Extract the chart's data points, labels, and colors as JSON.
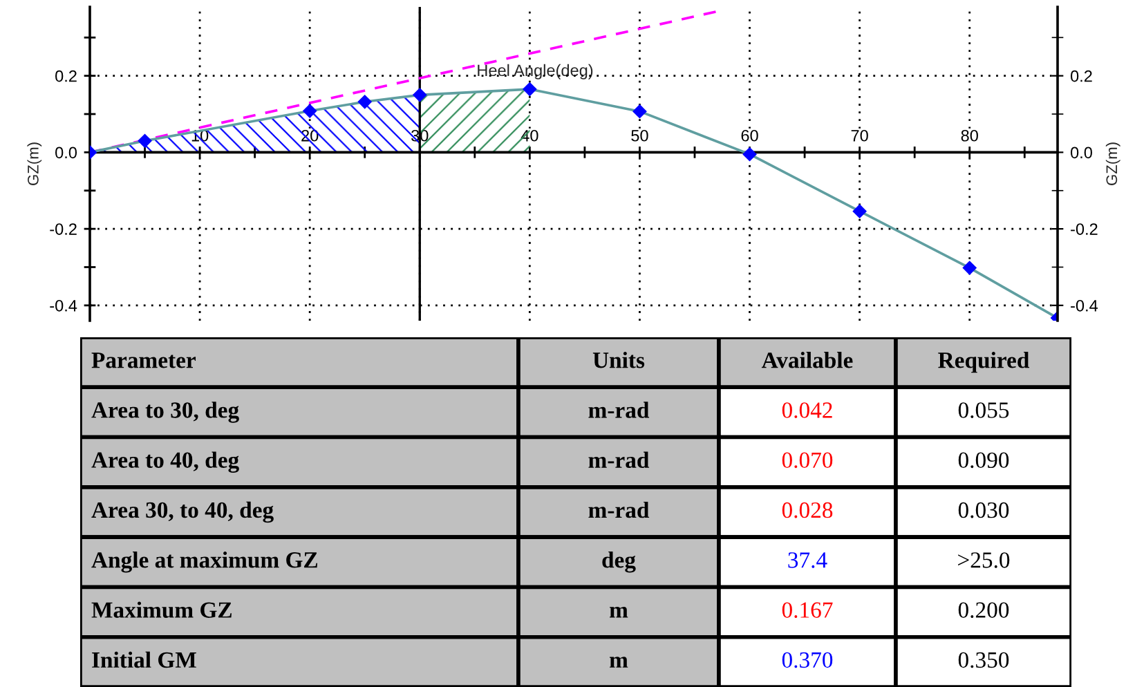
{
  "chart_data": [
    {
      "type": "line",
      "xlabel": "Heel Angle(deg)",
      "ylabel": "GZ(m)",
      "y2label": "GZ(m)",
      "xlim": [
        0,
        88
      ],
      "ylim": [
        -0.44,
        0.38
      ],
      "y2lim": [
        -0.44,
        0.38
      ],
      "xticks": [
        {
          "value": 5,
          "label": null
        },
        10,
        {
          "value": 15,
          "label": null
        },
        20,
        {
          "value": 25,
          "label": null
        },
        30,
        {
          "value": 35,
          "label": null
        },
        40,
        {
          "value": 45,
          "label": null
        },
        50,
        {
          "value": 55,
          "label": null
        },
        60,
        {
          "value": 65,
          "label": null
        },
        70,
        {
          "value": 75,
          "label": null
        },
        80,
        {
          "value": 85,
          "label": null
        }
      ],
      "yticks": [
        {
          "value": -0.4,
          "label": "-0.4"
        },
        {
          "value": -0.3,
          "label": null
        },
        {
          "value": -0.2,
          "label": "-0.2"
        },
        {
          "value": -0.1,
          "label": null
        },
        {
          "value": 0,
          "label": "0.0"
        },
        {
          "value": 0.1,
          "label": null
        },
        {
          "value": 0.2,
          "label": "0.2"
        },
        {
          "value": 0.3,
          "label": null
        }
      ],
      "y2ticks": [
        {
          "value": -0.4,
          "label": "-0.4"
        },
        {
          "value": -0.3,
          "label": null
        },
        {
          "value": -0.2,
          "label": "-0.2"
        },
        {
          "value": -0.1,
          "label": null
        },
        {
          "value": 0,
          "label": "0.0"
        },
        {
          "value": 0.1,
          "label": null
        },
        {
          "value": 0.2,
          "label": "0.2"
        },
        {
          "value": 0.3,
          "label": null
        }
      ],
      "grid": true,
      "legend": false,
      "ref_lines": [
        {
          "axis": "x",
          "value": 30,
          "color": "#000000",
          "line_style": "solid"
        }
      ],
      "series": [
        {
          "type": "area",
          "color": "#0000ff",
          "x": [
            0,
            5,
            20,
            25,
            30
          ],
          "values": [
            0,
            0.03,
            0.108,
            0.132,
            0.15
          ]
        },
        {
          "type": "area",
          "color": "#2e8b57",
          "x": [
            30,
            40
          ],
          "values": [
            0.15,
            0.165
          ]
        },
        {
          "type": "line",
          "color": "#ff00ff",
          "line_style": "dashed",
          "x": [
            0,
            57.3
          ],
          "values": [
            0,
            0.37
          ]
        },
        {
          "type": "line",
          "color": "#5f9ea0",
          "line_style": "solid",
          "x": [
            0,
            5,
            20,
            25,
            30,
            40,
            50,
            60,
            70,
            80,
            88
          ],
          "values": [
            0,
            0.03,
            0.108,
            0.132,
            0.15,
            0.165,
            0.107,
            -0.005,
            -0.154,
            -0.302,
            -0.433
          ]
        },
        {
          "type": "scatter",
          "color": "#0000ff",
          "marker": "diamond",
          "x": [
            0,
            5,
            20,
            25,
            30,
            40,
            50,
            60,
            70,
            80,
            88
          ],
          "values": [
            0,
            0.03,
            0.108,
            0.132,
            0.15,
            0.165,
            0.107,
            -0.005,
            -0.154,
            -0.302,
            -0.433
          ]
        }
      ]
    },
    {
      "type": "other",
      "categories": [
        "Parameter",
        "Units",
        "Available",
        "Required"
      ],
      "cell_labels": [
        [
          "Area to 30, deg",
          "m-rad",
          "0.042",
          "0.055"
        ],
        [
          "Area to 40, deg",
          "m-rad",
          "0.070",
          "0.090"
        ],
        [
          "Area 30, to 40, deg",
          "m-rad",
          "0.028",
          "0.030"
        ],
        [
          "Angle at maximum GZ",
          "deg",
          "37.4",
          ">25.0"
        ],
        [
          "Maximum GZ",
          "m",
          "0.167",
          "0.200"
        ],
        [
          "Initial GM",
          "m",
          "0.370",
          "0.350"
        ]
      ],
      "colors": [
        "#000000",
        "#000000",
        "#000000",
        "#000000",
        "#000000",
        "#000000",
        "#ff0000",
        "#000000",
        "#000000",
        "#000000",
        "#ff0000",
        "#000000",
        "#000000",
        "#000000",
        "#ff0000",
        "#000000",
        "#000000",
        "#000000",
        "#0000ff",
        "#000000",
        "#000000",
        "#000000",
        "#ff0000",
        "#000000",
        "#000000",
        "#000000",
        "#0000ff",
        "#000000"
      ]
    }
  ]
}
